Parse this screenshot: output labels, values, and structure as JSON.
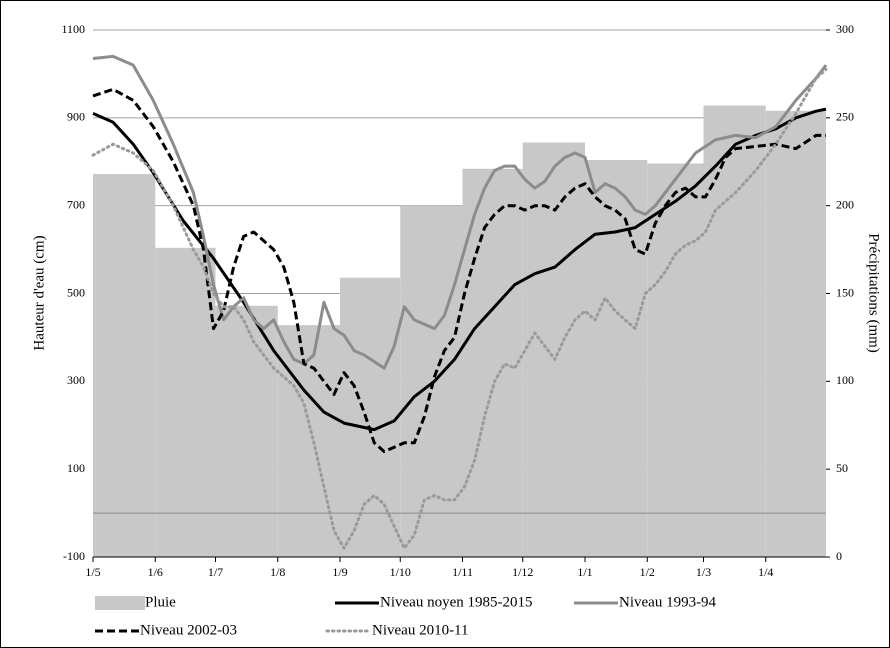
{
  "chart_data": {
    "type": "combo",
    "y_label": "Hauteur d'eau (cm)",
    "y2_label": "Précipitations (mm)",
    "xlim": [
      0,
      365
    ],
    "xticks": [
      {
        "value": 0,
        "label": "1/5"
      },
      {
        "value": 31,
        "label": "1/6"
      },
      {
        "value": 61,
        "label": "1/7"
      },
      {
        "value": 92,
        "label": "1/8"
      },
      {
        "value": 123,
        "label": "1/9"
      },
      {
        "value": 153,
        "label": "1/10"
      },
      {
        "value": 184,
        "label": "1/11"
      },
      {
        "value": 214,
        "label": "1/12"
      },
      {
        "value": 245,
        "label": "1/1"
      },
      {
        "value": 276,
        "label": "1/2"
      },
      {
        "value": 304,
        "label": "1/3"
      },
      {
        "value": 335,
        "label": "1/4"
      }
    ],
    "ylim": [
      -100,
      1100
    ],
    "yticks": [
      -100,
      100,
      300,
      500,
      700,
      900,
      1100
    ],
    "y2lim": [
      0,
      300
    ],
    "y2ticks": [
      0,
      50,
      100,
      150,
      200,
      250,
      300
    ],
    "grid": true,
    "series": [
      {
        "name": "Pluie",
        "type": "bar",
        "axis": "y2",
        "color": "#c8c8c8",
        "bins": [
          0,
          31,
          61,
          92,
          123,
          153,
          184,
          214,
          245,
          276,
          304,
          335,
          365
        ],
        "values": [
          218,
          176,
          143,
          132,
          159,
          200,
          221,
          236,
          226,
          224,
          257,
          254
        ]
      },
      {
        "name": "Niveau noyen 1985-2015",
        "type": "line",
        "color": "#000000",
        "style": "solid",
        "x": [
          0,
          10,
          20,
          30,
          45,
          60,
          75,
          90,
          105,
          115,
          125,
          140,
          150,
          160,
          170,
          180,
          190,
          200,
          210,
          220,
          230,
          240,
          250,
          260,
          270,
          280,
          290,
          300,
          310,
          320,
          330,
          340,
          350,
          360,
          365
        ],
        "values": [
          910,
          890,
          840,
          775,
          665,
          580,
          480,
          370,
          280,
          230,
          205,
          190,
          210,
          265,
          300,
          350,
          420,
          470,
          520,
          545,
          560,
          600,
          635,
          640,
          650,
          680,
          710,
          745,
          790,
          840,
          860,
          875,
          900,
          915,
          920
        ]
      },
      {
        "name": "Niveau 1993-94",
        "type": "line",
        "color": "#8c8c8c",
        "style": "solid",
        "x": [
          0,
          10,
          20,
          30,
          40,
          50,
          55,
          60,
          65,
          70,
          75,
          80,
          85,
          90,
          95,
          100,
          105,
          110,
          115,
          120,
          125,
          130,
          135,
          140,
          145,
          150,
          155,
          160,
          165,
          170,
          175,
          180,
          185,
          190,
          195,
          200,
          205,
          210,
          215,
          220,
          225,
          230,
          235,
          240,
          245,
          250,
          255,
          260,
          265,
          270,
          275,
          280,
          290,
          300,
          310,
          320,
          330,
          340,
          350,
          360,
          365
        ],
        "values": [
          1035,
          1040,
          1020,
          940,
          840,
          730,
          630,
          520,
          440,
          470,
          490,
          440,
          420,
          440,
          390,
          350,
          340,
          360,
          480,
          420,
          405,
          370,
          360,
          345,
          330,
          380,
          470,
          440,
          430,
          420,
          450,
          520,
          600,
          680,
          740,
          780,
          790,
          790,
          760,
          740,
          755,
          790,
          810,
          820,
          810,
          730,
          750,
          740,
          720,
          690,
          680,
          700,
          760,
          820,
          850,
          860,
          855,
          880,
          940,
          990,
          1020
        ]
      },
      {
        "name": "Niveau 2002-03",
        "type": "line",
        "color": "#000000",
        "style": "dashed",
        "x": [
          0,
          10,
          20,
          30,
          40,
          50,
          55,
          60,
          65,
          70,
          75,
          80,
          85,
          90,
          95,
          100,
          105,
          110,
          115,
          120,
          125,
          130,
          135,
          140,
          145,
          150,
          155,
          160,
          165,
          170,
          175,
          180,
          185,
          190,
          195,
          200,
          205,
          210,
          215,
          220,
          225,
          230,
          235,
          240,
          245,
          250,
          255,
          260,
          265,
          270,
          275,
          280,
          285,
          290,
          295,
          300,
          305,
          310,
          315,
          320,
          330,
          340,
          350,
          360,
          365
        ],
        "values": [
          950,
          965,
          940,
          880,
          800,
          700,
          600,
          420,
          460,
          560,
          630,
          640,
          620,
          600,
          560,
          480,
          340,
          330,
          300,
          270,
          320,
          290,
          230,
          160,
          140,
          150,
          160,
          160,
          220,
          310,
          370,
          400,
          500,
          580,
          650,
          680,
          700,
          700,
          690,
          700,
          700,
          690,
          720,
          740,
          750,
          720,
          700,
          690,
          670,
          600,
          590,
          660,
          700,
          730,
          740,
          720,
          720,
          760,
          810,
          830,
          835,
          840,
          830,
          860,
          860
        ]
      },
      {
        "name": "Niveau 2010-11",
        "type": "line",
        "color": "#9a9a9a",
        "style": "dotted",
        "x": [
          0,
          10,
          20,
          30,
          40,
          50,
          55,
          60,
          65,
          70,
          75,
          80,
          85,
          90,
          95,
          100,
          105,
          110,
          115,
          120,
          125,
          130,
          135,
          140,
          145,
          150,
          155,
          160,
          165,
          170,
          175,
          180,
          185,
          190,
          195,
          200,
          205,
          210,
          215,
          220,
          225,
          230,
          235,
          240,
          245,
          250,
          255,
          260,
          265,
          270,
          275,
          280,
          285,
          290,
          295,
          300,
          305,
          310,
          320,
          330,
          340,
          350,
          360,
          365
        ],
        "values": [
          815,
          840,
          820,
          780,
          700,
          600,
          560,
          500,
          470,
          470,
          440,
          390,
          360,
          330,
          310,
          290,
          250,
          160,
          60,
          -40,
          -80,
          -40,
          20,
          40,
          20,
          -30,
          -80,
          -50,
          30,
          40,
          30,
          30,
          60,
          120,
          220,
          300,
          340,
          330,
          370,
          410,
          380,
          350,
          400,
          440,
          460,
          440,
          490,
          460,
          440,
          420,
          500,
          520,
          550,
          590,
          610,
          620,
          640,
          690,
          730,
          780,
          840,
          910,
          990,
          1010
        ]
      }
    ]
  }
}
